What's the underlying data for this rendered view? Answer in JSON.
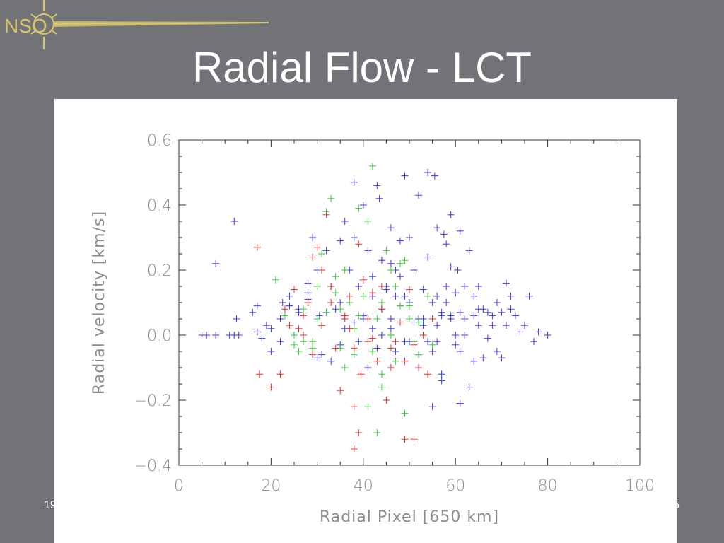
{
  "slide": {
    "title": "Radial Flow - LCT",
    "logo_text": "NSO",
    "footer_left": "19",
    "footer_right": "5"
  },
  "colors": {
    "background": "#727377",
    "logo": "#d8c56a",
    "series_blue": "#3a3ae0",
    "series_green": "#3acc3a",
    "series_red": "#e03434"
  },
  "chart_data": {
    "type": "scatter",
    "title": "",
    "xlabel": "Radial Pixel [650 km]",
    "ylabel": "Radial velocity [km/s]",
    "xlim": [
      0,
      100
    ],
    "ylim": [
      -0.4,
      0.6
    ],
    "xticks": [
      0,
      20,
      40,
      60,
      80,
      100
    ],
    "xtick_labels": [
      "0",
      "20",
      "40",
      "60",
      "80",
      "100"
    ],
    "yticks": [
      -0.4,
      -0.2,
      0.0,
      0.2,
      0.4,
      0.6
    ],
    "ytick_labels": [
      "-0.4",
      "-0.2",
      "0.0",
      "0.2",
      "0.4",
      "0.6"
    ],
    "marker": "plus",
    "grid": false,
    "series": [
      {
        "color": "#3a3ae0",
        "x": [
          5,
          6,
          8,
          11,
          12,
          13,
          8,
          12,
          12.5,
          16,
          17,
          17,
          20,
          20,
          22,
          22.5,
          24,
          26,
          28,
          28,
          29,
          30,
          30.5,
          32,
          33,
          35,
          35,
          36,
          37,
          38,
          38,
          39,
          40,
          40,
          41,
          42,
          42,
          43,
          43.5,
          44,
          44,
          45,
          46,
          46,
          46,
          47,
          47,
          48,
          48,
          49,
          49,
          50,
          50,
          51,
          51,
          52,
          52,
          52,
          53,
          53,
          54,
          54,
          55,
          55,
          55.5,
          56,
          56,
          57,
          57,
          57,
          57.5,
          58,
          58,
          59,
          59,
          59,
          60,
          60,
          60.5,
          61,
          61,
          61,
          62,
          62,
          62,
          63,
          63,
          64,
          64,
          65,
          65,
          66,
          66,
          67,
          67,
          68,
          68,
          69,
          69,
          70,
          70,
          71,
          71,
          72,
          72,
          73,
          74,
          75,
          76,
          77,
          78,
          80,
          49,
          55,
          56,
          58,
          42,
          45,
          32,
          28,
          30,
          34,
          36,
          38,
          40,
          43,
          46,
          48,
          50,
          53,
          56,
          59,
          60,
          65,
          39,
          41,
          44,
          47,
          51,
          54,
          57,
          61,
          64,
          33,
          37,
          35,
          31,
          26,
          24,
          22,
          19,
          18
        ],
        "y": [
          0,
          0,
          0,
          0,
          0,
          0,
          0.22,
          0.35,
          0.05,
          0.07,
          0.09,
          0.01,
          0.02,
          -0.05,
          0.05,
          0.1,
          0.12,
          0.08,
          0.16,
          0.11,
          0.3,
          0.2,
          0.06,
          0.26,
          0.15,
          0.29,
          0.1,
          0.35,
          0.2,
          0.47,
          0.3,
          0.15,
          0.05,
          0.4,
          0.26,
          0.18,
          0.12,
          0.46,
          0.42,
          0.23,
          0.08,
          0.15,
          0.33,
          0.22,
          0.05,
          0.12,
          0.2,
          0.29,
          0.18,
          0.49,
          0.12,
          0.3,
          0.1,
          0.2,
          -0.02,
          0.43,
          0.05,
          -0.06,
          0.14,
          0.03,
          0.5,
          0.24,
          0.1,
          -0.05,
          0.49,
          0.33,
          0.12,
          0.06,
          -0.14,
          0.07,
          0.31,
          0.28,
          0.1,
          0.37,
          0.05,
          0.21,
          0.13,
          0.0,
          0.2,
          0.32,
          0.07,
          -0.21,
          0.15,
          0.05,
          0.0,
          0.26,
          -0.16,
          0.12,
          -0.08,
          0.15,
          0.03,
          0.08,
          -0.07,
          0.07,
          -0.01,
          0.06,
          0.03,
          0.1,
          -0.05,
          0.07,
          -0.07,
          0.16,
          0.03,
          0.12,
          0.08,
          0.06,
          0.01,
          0.03,
          0.12,
          -0.02,
          0.01,
          0.0,
          -0.02,
          -0.22,
          -0.02,
          0.15,
          0.02,
          0.14,
          0.07,
          0.13,
          -0.07,
          0.08,
          0.02,
          0.04,
          0.06,
          -0.04,
          0.02,
          0.09,
          -0.02,
          0.05,
          0.03,
          0.06,
          -0.03,
          0.08,
          -0.02,
          -0.1,
          0.0,
          -0.05,
          0.04,
          -0.02,
          -0.12,
          -0.05,
          0.06,
          -0.08,
          0.02,
          -0.03,
          -0.06,
          0.07,
          0.09,
          -0.02,
          0.03,
          -0.01
        ],
        "name": ""
      },
      {
        "color": "#3acc3a",
        "x": [
          21,
          23,
          25,
          26,
          27,
          28,
          29,
          30,
          31,
          32,
          33,
          34,
          35,
          36,
          37,
          38,
          39,
          40,
          41,
          42,
          43,
          44,
          45,
          46,
          47,
          48,
          49,
          50,
          51,
          52,
          53,
          54,
          55,
          32,
          43,
          49,
          44,
          41,
          50,
          44,
          36,
          38,
          47,
          30,
          25,
          29,
          34,
          39,
          42,
          46,
          48,
          52,
          35,
          31,
          27
        ],
        "y": [
          0.17,
          0.06,
          0.0,
          -0.05,
          0.08,
          0.1,
          -0.02,
          0.15,
          0.25,
          0.07,
          0.42,
          0.18,
          -0.04,
          0.2,
          0.1,
          -0.06,
          0.39,
          0.12,
          0.35,
          0.52,
          0.05,
          -0.16,
          0.26,
          0.2,
          -0.08,
          0.22,
          0.23,
          0.09,
          -0.02,
          0.04,
          0.0,
          0.12,
          -0.03,
          0.38,
          -0.3,
          -0.24,
          -0.12,
          -0.22,
          0.05,
          0.1,
          -0.1,
          0.02,
          0.15,
          0.05,
          -0.03,
          -0.04,
          0.13,
          0.06,
          -0.05,
          0.0,
          0.09,
          -0.06,
          0.08,
          0.03,
          -0.02
        ],
        "name": ""
      },
      {
        "color": "#e03434",
        "x": [
          17,
          17.5,
          20,
          22,
          23,
          25,
          26,
          27,
          28,
          29,
          30,
          31,
          32,
          33,
          34,
          35,
          36,
          37,
          38,
          39,
          39.5,
          40,
          41,
          42,
          43,
          44,
          45,
          46,
          47,
          48,
          49,
          50,
          51,
          52,
          53,
          54,
          55,
          38,
          39,
          38,
          44,
          49,
          51,
          36,
          41,
          33,
          29,
          27,
          31,
          37,
          42,
          46,
          24
        ],
        "y": [
          0.27,
          -0.12,
          -0.16,
          -0.12,
          0.08,
          0.14,
          0.02,
          0.06,
          0.1,
          0.24,
          0.27,
          0.2,
          0.37,
          0.15,
          -0.04,
          -0.17,
          0.06,
          0.02,
          -0.04,
          0.28,
          -0.12,
          0.17,
          0.05,
          0.13,
          -0.08,
          0.15,
          -0.2,
          -0.1,
          -0.02,
          0.04,
          -0.08,
          0.14,
          -0.03,
          -0.1,
          0.0,
          -0.12,
          0.05,
          -0.35,
          -0.3,
          -0.22,
          0.08,
          -0.32,
          -0.32,
          0.05,
          -0.02,
          0.1,
          -0.06,
          0.0,
          0.03,
          0.12,
          -0.01,
          -0.04,
          0.03
        ],
        "name": ""
      }
    ]
  }
}
